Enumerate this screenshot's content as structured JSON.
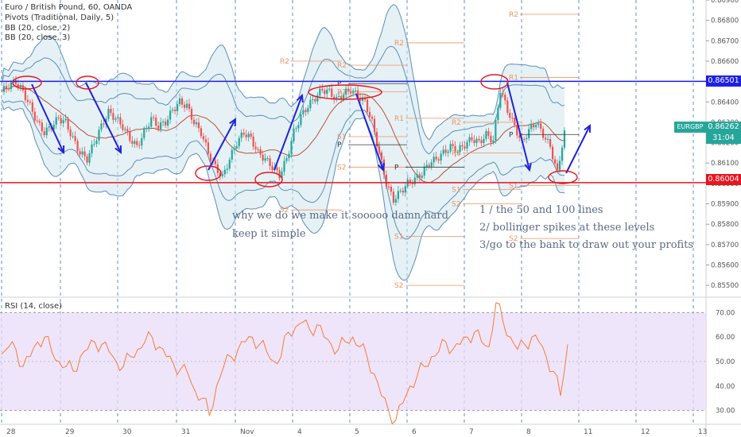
{
  "header": {
    "symbol_line": "Euro / British Pound, 60, OANDA",
    "pivots": "Pivots (Traditional, Daily, 5)",
    "bb1": "BB (20, close, 2)",
    "bb2": "BB (20, close, 3)",
    "rsi_label": "RSI (14, close)"
  },
  "price_tags": {
    "upper": "0.86501",
    "current_symbol": "EURGBP",
    "current_price": "0.86262",
    "countdown": "31:04",
    "lower": "0.86004"
  },
  "notes": {
    "left_1": "why we do we make it sooooo damn hard",
    "left_2": "keep it simple",
    "right_1": "1 /  the 50 and 100 lines",
    "right_2": "2/ bollinger spikes at these levels",
    "right_3": "3/go to the bank to draw out your profits"
  },
  "colors": {
    "up": "#26a69a",
    "down": "#ef5350",
    "resistance": "#1f1fe8",
    "support": "#e8141e",
    "bb": "#5b8fb9",
    "rsi_line": "#f57c3a",
    "rsi_band": "#eadcf8",
    "pivot": "#f0935c",
    "arrow": "#2222dd"
  },
  "chart_data": [
    {
      "type": "candlestick",
      "ylim": [
        0.8545,
        0.869
      ],
      "y_ticks": [
        "0.86900",
        "0.86800",
        "0.86700",
        "0.86600",
        "0.86500",
        "0.86400",
        "0.86300",
        "0.86200",
        "0.86100",
        "0.86000",
        "0.85900",
        "0.85800",
        "0.85700",
        "0.85600",
        "0.85500"
      ],
      "x_ticks": [
        "28",
        "29",
        "30",
        "31",
        "Nov",
        "4",
        "5",
        "6",
        "7",
        "8",
        "11",
        "12",
        "13"
      ],
      "horizontal_levels": [
        {
          "label": "resistance",
          "value": 0.86501
        },
        {
          "label": "support",
          "value": 0.86004
        }
      ],
      "pivot_labels": [
        {
          "label": "R2",
          "value": 0.866
        },
        {
          "label": "R1",
          "value": 0.8645
        },
        {
          "label": "R2",
          "value": 0.8658
        },
        {
          "label": "P",
          "value": 0.8649
        },
        {
          "label": "S1",
          "value": 0.8623
        },
        {
          "label": "P",
          "value": 0.8619
        },
        {
          "label": "S2",
          "value": 0.8608
        },
        {
          "label": "S2",
          "value": 0.8587
        },
        {
          "label": "R2",
          "value": 0.8669
        },
        {
          "label": "R1",
          "value": 0.8632
        },
        {
          "label": "P",
          "value": 0.8608
        },
        {
          "label": "S1",
          "value": 0.8574
        },
        {
          "label": "S2",
          "value": 0.855
        },
        {
          "label": "R2",
          "value": 0.863
        },
        {
          "label": "R1",
          "value": 0.8615
        },
        {
          "label": "S1",
          "value": 0.8597
        },
        {
          "label": "S2",
          "value": 0.859
        },
        {
          "label": "R2",
          "value": 0.8683
        },
        {
          "label": "R1",
          "value": 0.8652
        },
        {
          "label": "P",
          "value": 0.8624
        },
        {
          "label": "S1",
          "value": 0.8599
        },
        {
          "label": "S2",
          "value": 0.8573
        }
      ],
      "close_path": [
        0.8645,
        0.8648,
        0.865,
        0.8645,
        0.8638,
        0.863,
        0.8625,
        0.8628,
        0.8632,
        0.863,
        0.8622,
        0.8615,
        0.8612,
        0.862,
        0.8628,
        0.8635,
        0.8632,
        0.8628,
        0.8622,
        0.8618,
        0.8625,
        0.8632,
        0.8628,
        0.863,
        0.8636,
        0.864,
        0.8638,
        0.863,
        0.8625,
        0.8615,
        0.8608,
        0.8603,
        0.8612,
        0.862,
        0.8625,
        0.8622,
        0.8615,
        0.8612,
        0.8608,
        0.8604,
        0.8612,
        0.8625,
        0.8633,
        0.8638,
        0.8642,
        0.8646,
        0.8645,
        0.8641,
        0.8644,
        0.8646,
        0.8643,
        0.864,
        0.863,
        0.8615,
        0.86,
        0.8592,
        0.8596,
        0.86,
        0.8602,
        0.8605,
        0.861,
        0.8612,
        0.8615,
        0.8618,
        0.8616,
        0.8619,
        0.8622,
        0.862,
        0.8624,
        0.8621,
        0.8646,
        0.8636,
        0.8628,
        0.862,
        0.8626,
        0.863,
        0.8624,
        0.8618,
        0.8605,
        0.8626
      ]
    },
    {
      "type": "line",
      "title": "RSI (14, close)",
      "ylim": [
        25,
        75
      ],
      "y_ticks": [
        "70.00",
        "60.00",
        "50.00",
        "40.00",
        "30.00"
      ],
      "band": [
        30,
        70
      ],
      "values": [
        53,
        56,
        55,
        48,
        52,
        58,
        60,
        54,
        50,
        48,
        46,
        52,
        55,
        58,
        57,
        54,
        50,
        48,
        52,
        55,
        58,
        60,
        56,
        52,
        49,
        47,
        45,
        38,
        35,
        28,
        40,
        48,
        52,
        55,
        58,
        60,
        57,
        54,
        50,
        52,
        62,
        64,
        66,
        63,
        65,
        60,
        57,
        55,
        58,
        60,
        56,
        52,
        45,
        36,
        30,
        26,
        33,
        40,
        44,
        48,
        52,
        54,
        58,
        55,
        57,
        60,
        62,
        58,
        56,
        74,
        66,
        60,
        55,
        57,
        60,
        58,
        52,
        46,
        36,
        57
      ]
    }
  ]
}
